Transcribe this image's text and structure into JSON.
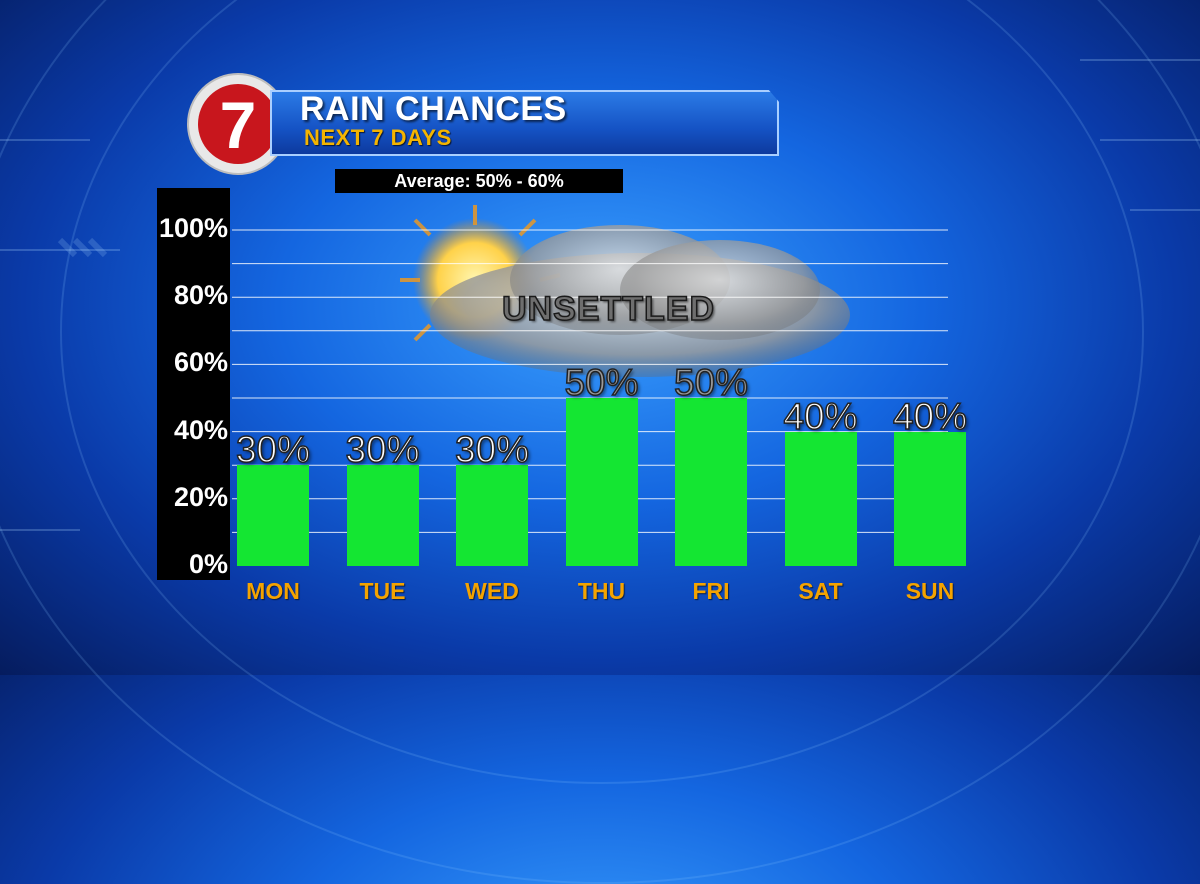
{
  "logo": {
    "text": "7"
  },
  "header": {
    "title": "RAIN CHANCES",
    "subtitle": "NEXT 7 DAYS",
    "average": "Average: 50% - 60%"
  },
  "chart_data": {
    "type": "bar",
    "categories": [
      "MON",
      "TUE",
      "WED",
      "THU",
      "FRI",
      "SAT",
      "SUN"
    ],
    "values": [
      30,
      30,
      30,
      50,
      50,
      40,
      40
    ],
    "value_labels": [
      "30%",
      "30%",
      "30%",
      "50%",
      "50%",
      "40%",
      "40%"
    ],
    "y_ticks": [
      "0%",
      "20%",
      "40%",
      "60%",
      "80%",
      "100%"
    ],
    "y_tick_values": [
      0,
      20,
      40,
      60,
      80,
      100
    ],
    "ylim": [
      0,
      100
    ],
    "grid": true,
    "annotation": "UNSETTLED",
    "bar_color": "#14e632",
    "label_color": "#f4a300"
  }
}
